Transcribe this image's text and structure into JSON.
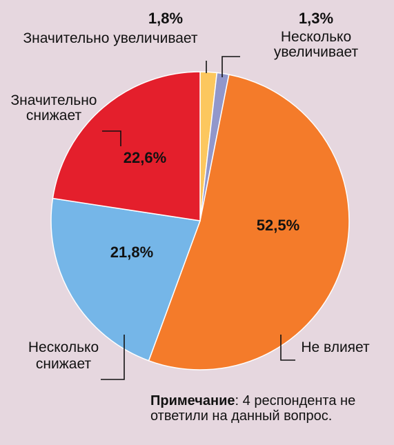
{
  "chart_data": {
    "type": "pie",
    "categories": [
      "Значительно увеличивает",
      "Несколько увеличивает",
      "Не влияет",
      "Несколько снижает",
      "Значительно снижает"
    ],
    "values": [
      1.8,
      1.3,
      52.5,
      21.8,
      22.6
    ],
    "value_labels": [
      "1,8%",
      "1,3%",
      "52,5%",
      "21,8%",
      "22,6%"
    ],
    "colors": [
      "#fcc75e",
      "#9197cb",
      "#f47b2a",
      "#75b6e8",
      "#e41f2c"
    ],
    "label_lines": [
      [
        "Значительно увеличивает"
      ],
      [
        "Несколько",
        "увеличивает"
      ],
      [
        "Не влияет"
      ],
      [
        "Несколько",
        "снижает"
      ],
      [
        "Значительно",
        "снижает"
      ]
    ],
    "start_angle": "12 o'clock",
    "direction": "clockwise"
  },
  "note": {
    "bold": "Примечание",
    "text": ": 4 респондента не ответили на данный вопрос."
  }
}
